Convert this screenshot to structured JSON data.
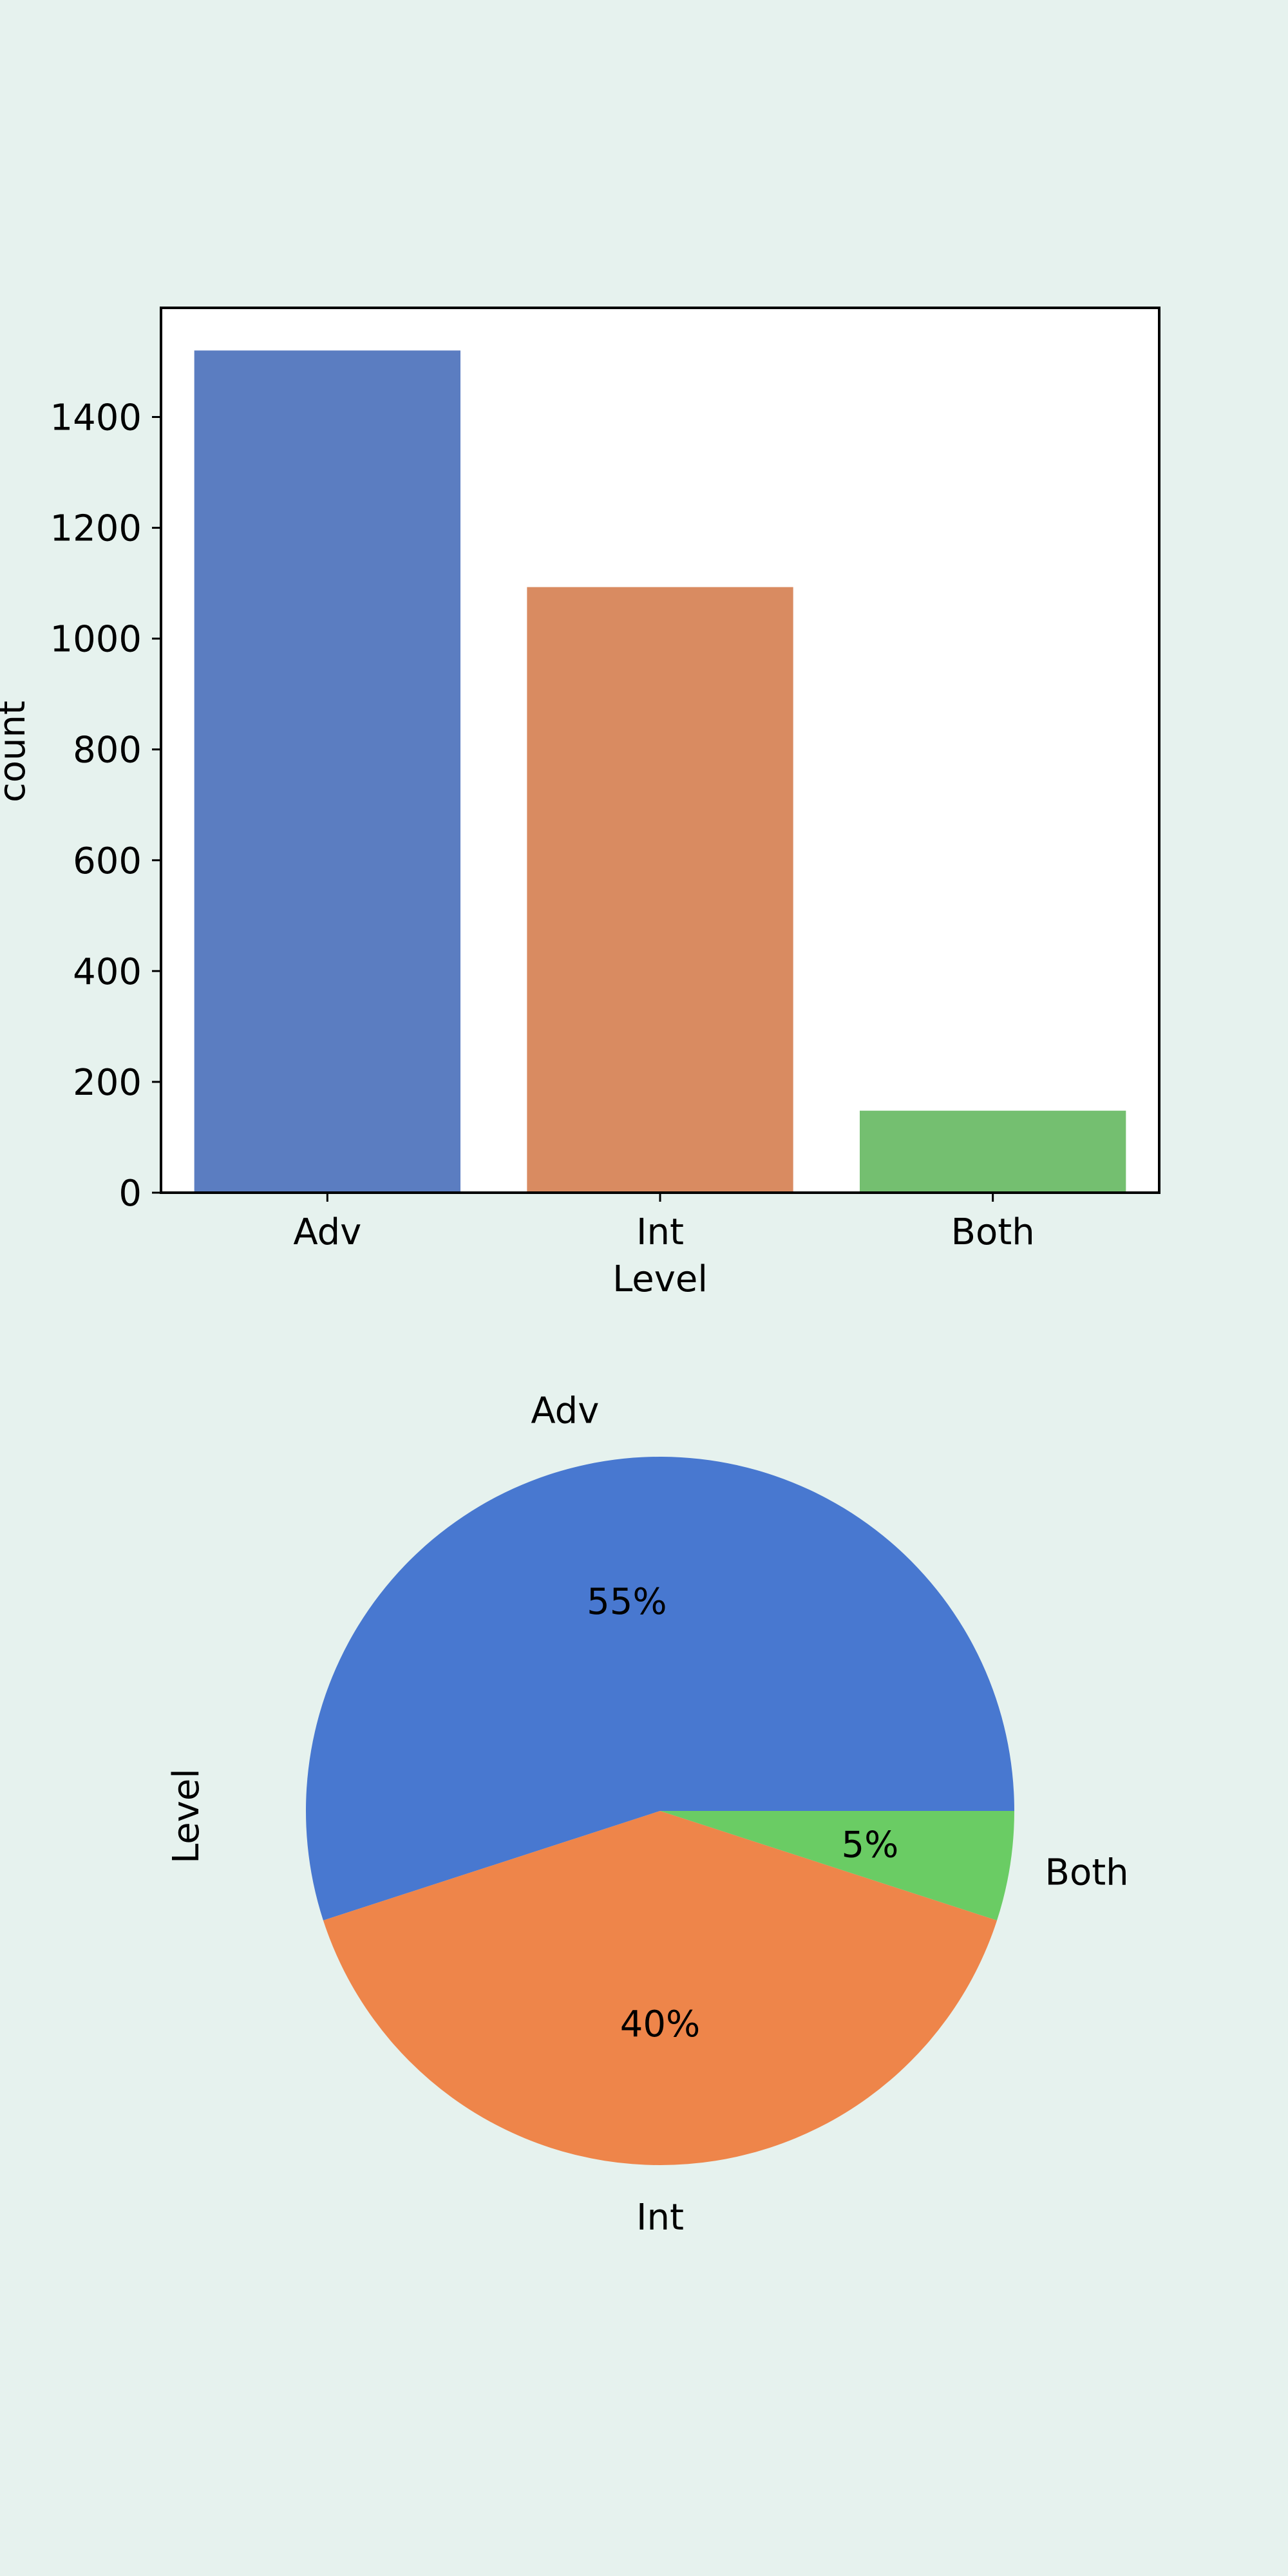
{
  "chart_data": [
    {
      "type": "bar",
      "categories": [
        "Adv",
        "Int",
        "Both"
      ],
      "values": [
        1520,
        1093,
        148
      ],
      "colors": [
        "#5b7dc1",
        "#d98b61",
        "#74bf70"
      ],
      "xlabel": "Level",
      "ylabel": "count",
      "ylim": [
        0,
        1597
      ],
      "yticks": [
        0,
        200,
        400,
        600,
        800,
        1000,
        1200,
        1400
      ],
      "grid": false
    },
    {
      "type": "pie",
      "ylabel": "Level",
      "slices": [
        {
          "label": "Adv",
          "value": 55,
          "pct_label": "55%",
          "color": "#4878d0"
        },
        {
          "label": "Int",
          "value": 40,
          "pct_label": "40%",
          "color": "#ee854a"
        },
        {
          "label": "Both",
          "value": 5,
          "pct_label": "5%",
          "color": "#6acc64"
        }
      ]
    }
  ]
}
